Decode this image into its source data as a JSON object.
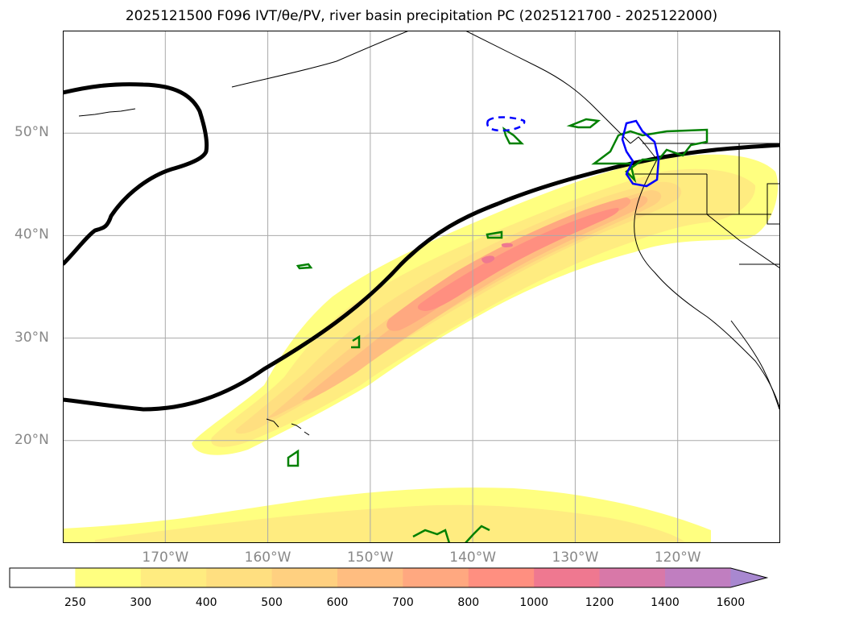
{
  "title": "2025121500 F096 IVT/θe/PV, river basin precipitation PC (2025121700 - 2025122000)",
  "map": {
    "extent": {
      "lon_min": 180,
      "lon_max": 250,
      "lat_min": 10,
      "lat_max": 60
    },
    "lat_labels": [
      {
        "lat": 50,
        "text": "50°N"
      },
      {
        "lat": 40,
        "text": "40°N"
      },
      {
        "lat": 30,
        "text": "30°N"
      },
      {
        "lat": 20,
        "text": "20°N"
      }
    ],
    "lon_labels": [
      {
        "lon": 190,
        "text": "170°W"
      },
      {
        "lon": 200,
        "text": "160°W"
      },
      {
        "lon": 210,
        "text": "150°W"
      },
      {
        "lon": 220,
        "text": "140°W"
      },
      {
        "lon": 230,
        "text": "130°W"
      },
      {
        "lon": 240,
        "text": "120°W"
      }
    ],
    "theta_e_contour_color": "#000000",
    "pv_contour_color": "#008000",
    "precip_pc_contour_color": "#0000ff"
  },
  "colorbar": {
    "levels": [
      250,
      300,
      400,
      500,
      600,
      700,
      800,
      1000,
      1200,
      1400,
      1600
    ],
    "level_labels": [
      "250",
      "300",
      "400",
      "500",
      "600",
      "700",
      "800",
      "1000",
      "1200",
      "1400",
      "1600"
    ],
    "colors": [
      "#ffffff",
      "#ffff80",
      "#ffec80",
      "#ffdf80",
      "#ffd080",
      "#ffbd80",
      "#ffa880",
      "#ff8f80",
      "#ef7890",
      "#d878a8",
      "#c07ec0",
      "#a888d0"
    ],
    "extend": "max"
  }
}
